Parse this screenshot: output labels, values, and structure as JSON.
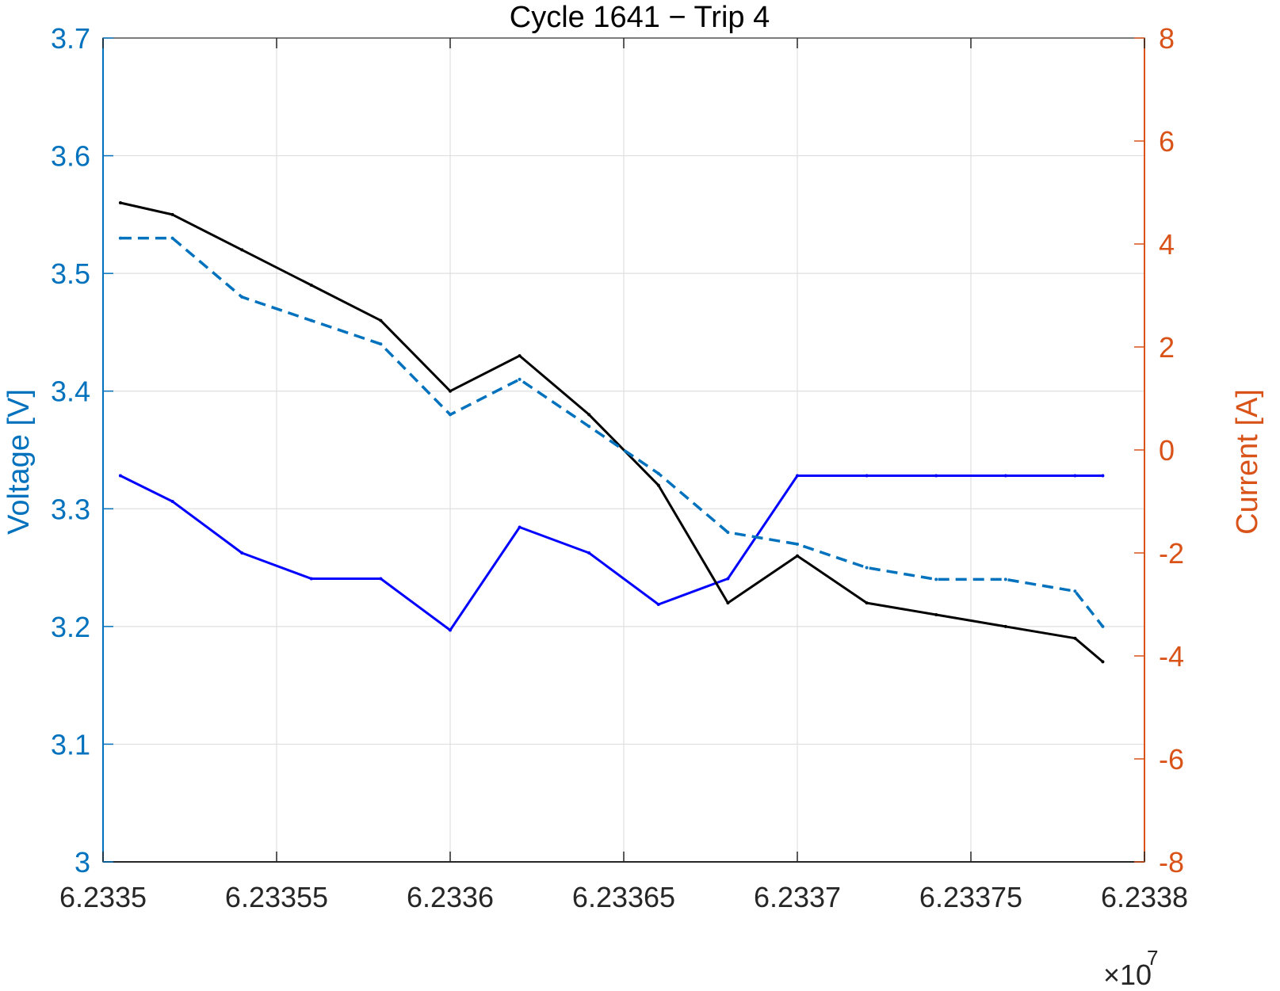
{
  "chart_data": {
    "type": "line",
    "title": "Cycle 1641 − Trip 4",
    "x_axis": {
      "range": [
        62335000,
        62338000
      ],
      "tick_labels": [
        "6.2335",
        "6.23355",
        "6.2336",
        "6.23365",
        "6.2337",
        "6.23375",
        "6.2338"
      ],
      "tick_values": [
        62335000,
        62335500,
        62336000,
        62336500,
        62337000,
        62337500,
        62338000
      ],
      "exponent_label": "×10",
      "exponent_power": "7",
      "grid": true
    },
    "y_left": {
      "label": "Voltage [V]",
      "range": [
        3.0,
        3.7
      ],
      "tick_labels": [
        "3",
        "3.1",
        "3.2",
        "3.3",
        "3.4",
        "3.5",
        "3.6",
        "3.7"
      ],
      "tick_values": [
        3.0,
        3.1,
        3.2,
        3.3,
        3.4,
        3.5,
        3.6,
        3.7
      ],
      "color": "#0072BD",
      "grid": true
    },
    "y_right": {
      "label": "Current [A]",
      "range": [
        -8,
        8
      ],
      "tick_labels": [
        "-8",
        "-6",
        "-4",
        "-2",
        "0",
        "2",
        "4",
        "6",
        "8"
      ],
      "tick_values": [
        -8,
        -6,
        -4,
        -2,
        0,
        2,
        4,
        6,
        8
      ],
      "color": "#D95319"
    },
    "series": [
      {
        "axis": "left",
        "color": "#000000",
        "style": "solid",
        "x": [
          62335050,
          62335200,
          62335400,
          62335600,
          62335800,
          62336000,
          62336200,
          62336400,
          62336600,
          62336800,
          62337000,
          62337200,
          62337400,
          62337600,
          62337800,
          62337880
        ],
        "y": [
          3.56,
          3.55,
          3.52,
          3.49,
          3.46,
          3.4,
          3.43,
          3.38,
          3.32,
          3.22,
          3.26,
          3.22,
          3.21,
          3.2,
          3.19,
          3.17
        ]
      },
      {
        "axis": "left",
        "color": "#0072BD",
        "style": "dashed",
        "x": [
          62335050,
          62335200,
          62335400,
          62335600,
          62335800,
          62336000,
          62336200,
          62336400,
          62336600,
          62336800,
          62337000,
          62337200,
          62337400,
          62337600,
          62337800,
          62337880
        ],
        "y": [
          3.53,
          3.53,
          3.48,
          3.46,
          3.44,
          3.38,
          3.41,
          3.37,
          3.33,
          3.28,
          3.27,
          3.25,
          3.24,
          3.24,
          3.23,
          3.2
        ]
      },
      {
        "axis": "right",
        "color": "#0000FF",
        "style": "solid",
        "x": [
          62335050,
          62335200,
          62335400,
          62335600,
          62335800,
          62336000,
          62336200,
          62336400,
          62336600,
          62336800,
          62337000,
          62337200,
          62337400,
          62337600,
          62337800,
          62337880
        ],
        "y": [
          -0.5,
          -1.0,
          -2.0,
          -2.5,
          -2.5,
          -3.5,
          -1.5,
          -2.0,
          -3.0,
          -2.5,
          -0.5,
          -0.5,
          -0.5,
          -0.5,
          -0.5,
          -0.5
        ]
      }
    ]
  }
}
